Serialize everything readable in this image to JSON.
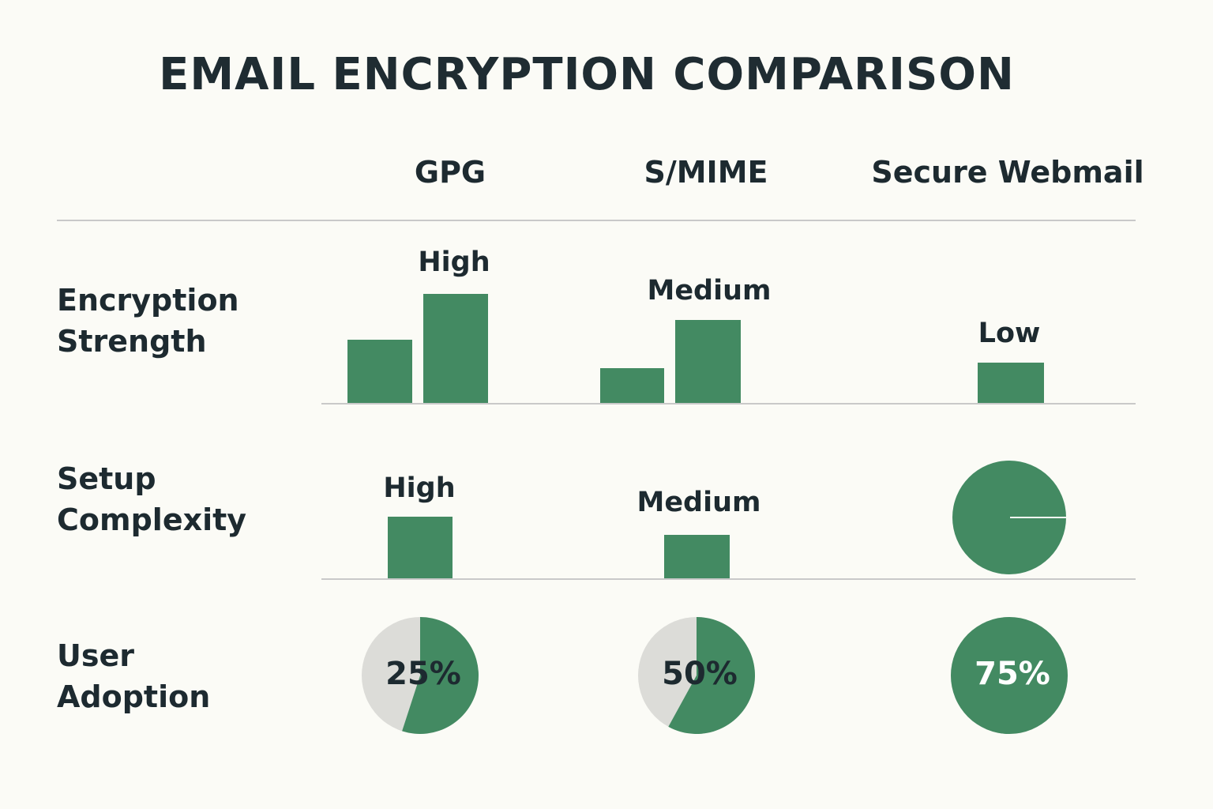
{
  "title": "EMAIL ENCRYPTION COMPARISON",
  "columns": [
    "GPG",
    "S/MIME",
    "Secure Webmail"
  ],
  "rows": [
    {
      "label_line1": "Encryption",
      "label_line2": "Strength"
    },
    {
      "label_line1": "Setup",
      "label_line2": "Complexity"
    },
    {
      "label_line1": "User",
      "label_line2": "Adoption"
    }
  ],
  "colors": {
    "bar": "#438a62",
    "pie_bg": "#dcdcd8",
    "pct_on_green": "#ffffff",
    "pct_on_grey": "#1d2a30"
  },
  "chart_data": [
    {
      "type": "bar",
      "row": "Encryption Strength",
      "categories": [
        "GPG",
        "S/MIME",
        "Secure Webmail"
      ],
      "levels": [
        "High",
        "Medium",
        "Low"
      ],
      "bars_relative": [
        [
          0.58,
          1.0
        ],
        [
          0.32,
          0.76
        ],
        [
          0.37
        ]
      ]
    },
    {
      "type": "bar",
      "row": "Setup Complexity",
      "categories": [
        "GPG",
        "S/MIME",
        "Secure Webmail"
      ],
      "levels": [
        "High",
        "Medium",
        ""
      ],
      "bars_relative": [
        [
          1.0
        ],
        [
          0.7
        ],
        []
      ],
      "extra": "Secure Webmail shown as a full green circle"
    },
    {
      "type": "pie",
      "row": "User Adoption",
      "categories": [
        "GPG",
        "S/MIME",
        "Secure Webmail"
      ],
      "labels": [
        "25%",
        "50%",
        "75%"
      ],
      "values": [
        25,
        50,
        75
      ]
    }
  ]
}
